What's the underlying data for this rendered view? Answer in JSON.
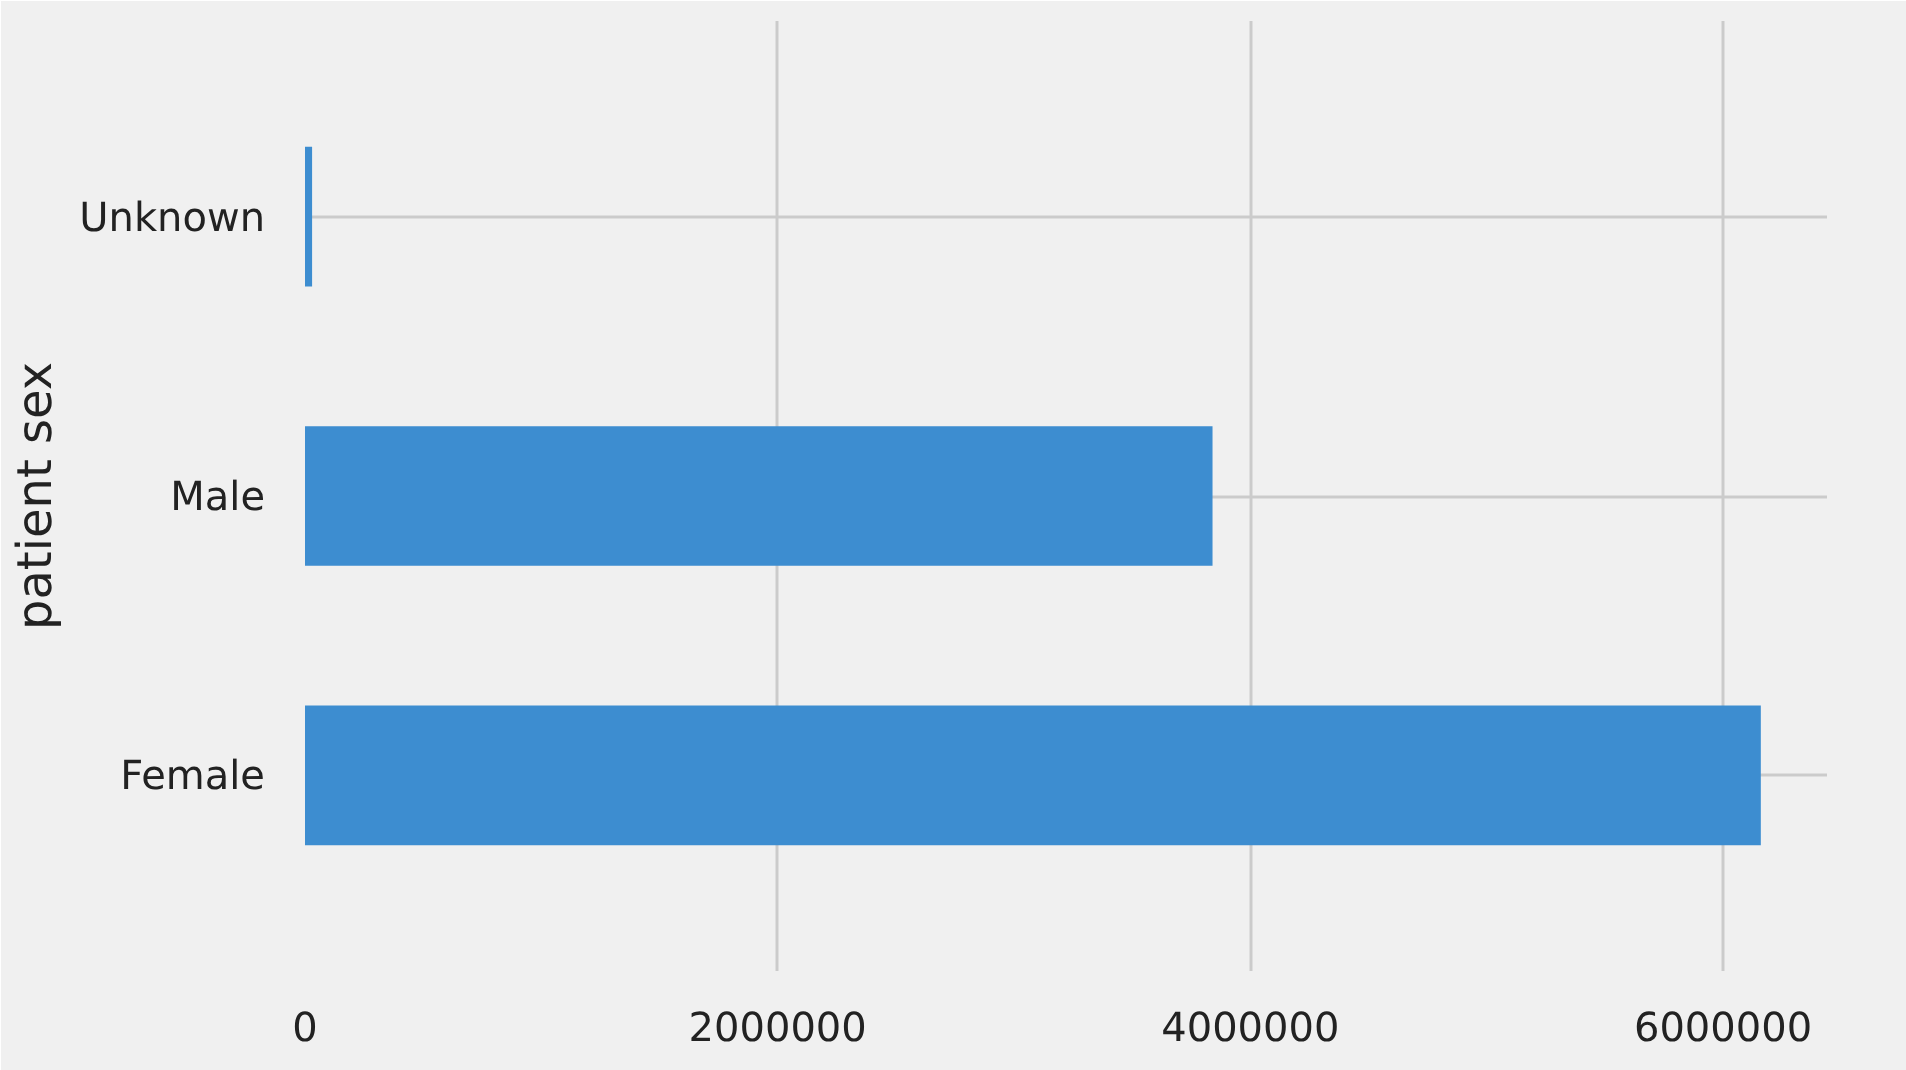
{
  "chart_data": {
    "type": "bar",
    "orientation": "horizontal",
    "ylabel": "patient sex",
    "categories": [
      "Unknown",
      "Male",
      "Female"
    ],
    "values": [
      30000,
      3840000,
      6160000
    ],
    "color": "#3d8dd0",
    "xlim": [
      0,
      6440000
    ],
    "xticks": [
      0,
      2000000,
      4000000,
      6000000
    ],
    "grid": true
  }
}
